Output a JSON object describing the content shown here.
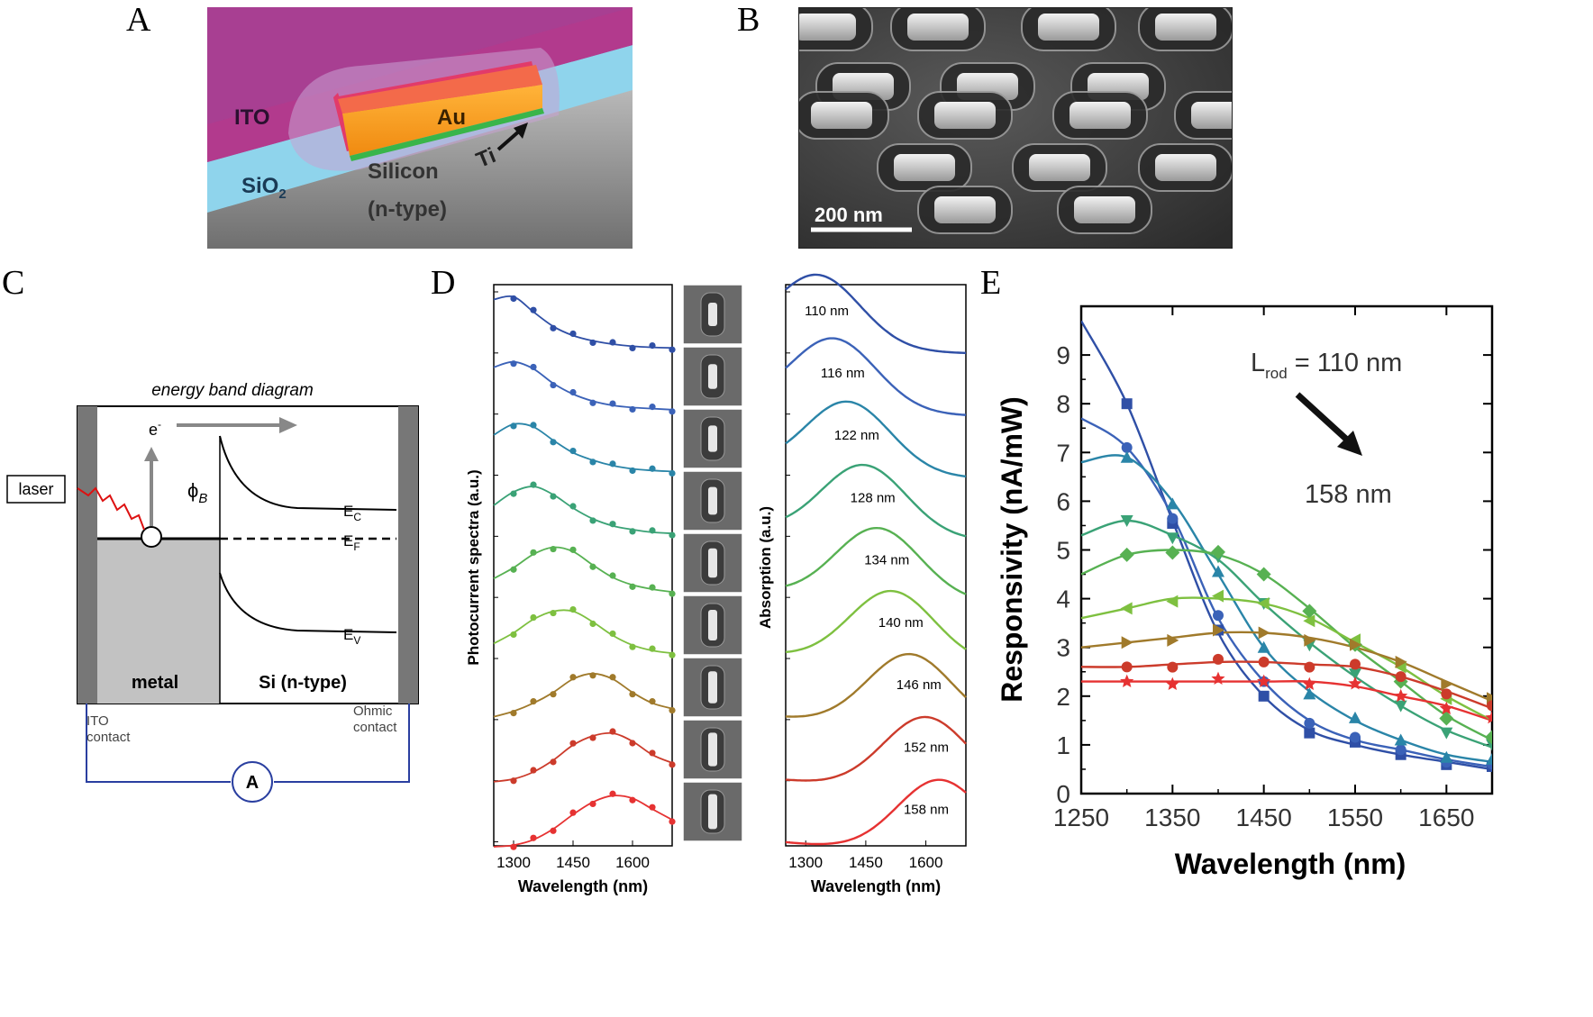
{
  "panels": {
    "a": {
      "letter": "A",
      "labels": {
        "ito": "ITO",
        "au": "Au",
        "ti": "Ti",
        "sio2": "SiO",
        "sio2_sub": "2",
        "silicon": "Silicon",
        "ntype": "(n-type)"
      }
    },
    "b": {
      "letter": "B",
      "scale_bar": "200 nm"
    },
    "c": {
      "letter": "C",
      "title": "energy band diagram",
      "laser": "laser",
      "electron": "e",
      "electron_sup": "-",
      "phi": "ϕ",
      "phi_sub": "B",
      "ec": "E",
      "ec_sub": "C",
      "ef": "E",
      "ef_sub": "F",
      "ev": "E",
      "ev_sub": "V",
      "metal": "metal",
      "si": "Si (n-type)",
      "ito_contact_1": "ITO",
      "ito_contact_2": "contact",
      "ohmic_1": "Ohmic",
      "ohmic_2": "contact",
      "ammeter": "A"
    },
    "d": {
      "letter": "D",
      "left_ylabel": "Photocurrent spectra (a.u.)",
      "right_ylabel": "Absorption (a.u.)",
      "xlabel": "Wavelength (nm)",
      "xticks": [
        "1300",
        "1450",
        "1600"
      ]
    },
    "e": {
      "letter": "E",
      "ylabel": "Responsivity (nA/mW)",
      "xlabel": "Wavelength (nm)",
      "annotation_start": "L",
      "annotation_sub": "rod",
      "annotation_rest": " = 110 nm",
      "annotation_end": "158 nm"
    }
  },
  "chart_data": [
    {
      "panel": "D-left",
      "type": "line",
      "xlabel": "Wavelength (nm)",
      "ylabel": "Photocurrent spectra (a.u.)",
      "xlim": [
        1250,
        1700
      ],
      "x": [
        1250,
        1300,
        1350,
        1400,
        1450,
        1500,
        1550,
        1600,
        1650,
        1700
      ],
      "series": [
        {
          "values": [
            0.95,
            1.0,
            0.72,
            0.45,
            0.28,
            0.18,
            0.12,
            0.08,
            0.06,
            0.05
          ],
          "color": "#2f4fa6"
        },
        {
          "values": [
            0.85,
            0.95,
            0.82,
            0.55,
            0.35,
            0.22,
            0.14,
            0.1,
            0.08,
            0.06
          ],
          "color": "#3b62b8"
        },
        {
          "values": [
            0.75,
            0.95,
            0.9,
            0.65,
            0.42,
            0.28,
            0.18,
            0.12,
            0.09,
            0.07
          ],
          "color": "#2a85a8"
        },
        {
          "values": [
            0.6,
            0.85,
            0.95,
            0.8,
            0.55,
            0.35,
            0.22,
            0.15,
            0.1,
            0.08
          ],
          "color": "#3aa276"
        },
        {
          "values": [
            0.4,
            0.6,
            0.85,
            0.98,
            0.9,
            0.65,
            0.42,
            0.28,
            0.2,
            0.15
          ],
          "color": "#57b152"
        },
        {
          "values": [
            0.35,
            0.55,
            0.8,
            0.95,
            0.95,
            0.75,
            0.5,
            0.32,
            0.22,
            0.17
          ],
          "color": "#7ec040"
        },
        {
          "values": [
            0.15,
            0.25,
            0.4,
            0.6,
            0.85,
            0.95,
            0.85,
            0.6,
            0.4,
            0.3
          ],
          "color": "#a07a2b"
        },
        {
          "values": [
            0.1,
            0.15,
            0.28,
            0.5,
            0.78,
            0.95,
            1.0,
            0.85,
            0.6,
            0.45
          ],
          "color": "#cc3b2b"
        },
        {
          "values": [
            0.05,
            0.08,
            0.18,
            0.38,
            0.65,
            0.88,
            1.0,
            0.95,
            0.75,
            0.55
          ],
          "color": "#e63232"
        }
      ]
    },
    {
      "panel": "D-right",
      "type": "line",
      "xlabel": "Wavelength (nm)",
      "ylabel": "Absorption (a.u.)",
      "xlim": [
        1250,
        1700
      ],
      "series": [
        {
          "name": "110 nm",
          "peak": 1330,
          "color": "#2f4fa6"
        },
        {
          "name": "116 nm",
          "peak": 1370,
          "color": "#3b62b8"
        },
        {
          "name": "122 nm",
          "peak": 1405,
          "color": "#2a85a8"
        },
        {
          "name": "128 nm",
          "peak": 1445,
          "color": "#3aa276"
        },
        {
          "name": "134 nm",
          "peak": 1480,
          "color": "#57b152"
        },
        {
          "name": "140 nm",
          "peak": 1515,
          "color": "#7ec040"
        },
        {
          "name": "146 nm",
          "peak": 1560,
          "color": "#a07a2b"
        },
        {
          "name": "152 nm",
          "peak": 1600,
          "color": "#cc3b2b"
        },
        {
          "name": "158 nm",
          "peak": 1635,
          "color": "#e63232"
        }
      ]
    },
    {
      "panel": "E",
      "type": "line",
      "xlabel": "Wavelength (nm)",
      "ylabel": "Responsivity (nA/mW)",
      "xlim": [
        1250,
        1700
      ],
      "ylim": [
        0,
        10
      ],
      "xticks": [
        1250,
        1350,
        1450,
        1550,
        1650
      ],
      "yticks": [
        0,
        1,
        2,
        3,
        4,
        5,
        6,
        7,
        8,
        9
      ],
      "x": [
        1250,
        1300,
        1350,
        1400,
        1450,
        1500,
        1550,
        1600,
        1650,
        1700
      ],
      "series": [
        {
          "values": [
            9.7,
            8.0,
            5.6,
            3.3,
            2.0,
            1.3,
            1.0,
            0.8,
            0.65,
            0.5
          ],
          "marker": "square",
          "color": "#2f4fa6"
        },
        {
          "values": [
            7.7,
            7.1,
            5.7,
            3.6,
            2.3,
            1.5,
            1.1,
            0.9,
            0.7,
            0.55
          ],
          "marker": "circle",
          "color": "#3b62b8"
        },
        {
          "values": [
            6.8,
            6.9,
            6.0,
            4.5,
            3.0,
            2.1,
            1.5,
            1.1,
            0.8,
            0.65
          ],
          "marker": "triangle-up",
          "color": "#2a85a8"
        },
        {
          "values": [
            5.3,
            5.6,
            5.3,
            4.8,
            3.9,
            3.1,
            2.4,
            1.8,
            1.3,
            0.95
          ],
          "marker": "triangle-down",
          "color": "#3aa276"
        },
        {
          "values": [
            4.5,
            4.9,
            5.0,
            4.9,
            4.5,
            3.8,
            3.0,
            2.3,
            1.6,
            1.1
          ],
          "marker": "diamond",
          "color": "#57b152"
        },
        {
          "values": [
            3.6,
            3.8,
            4.0,
            4.0,
            3.9,
            3.6,
            3.1,
            2.6,
            2.0,
            1.5
          ],
          "marker": "triangle-left",
          "color": "#7ec040"
        },
        {
          "values": [
            3.0,
            3.1,
            3.2,
            3.3,
            3.3,
            3.2,
            3.0,
            2.7,
            2.3,
            1.9
          ],
          "marker": "triangle-right",
          "color": "#a07a2b"
        },
        {
          "values": [
            2.6,
            2.6,
            2.65,
            2.7,
            2.7,
            2.65,
            2.6,
            2.4,
            2.1,
            1.75
          ],
          "marker": "circle",
          "color": "#cc3b2b"
        },
        {
          "values": [
            2.3,
            2.3,
            2.3,
            2.3,
            2.3,
            2.3,
            2.2,
            2.0,
            1.8,
            1.5
          ],
          "marker": "star",
          "color": "#e63232"
        }
      ]
    }
  ]
}
